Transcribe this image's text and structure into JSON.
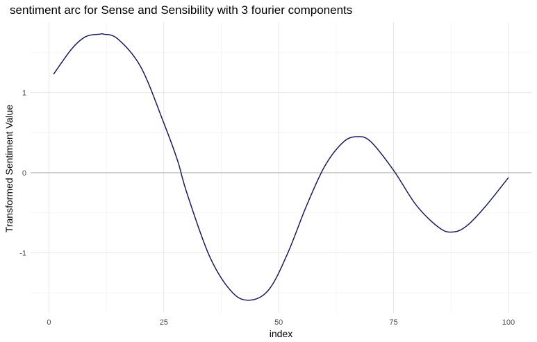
{
  "chart_data": {
    "type": "line",
    "title": "sentiment arc for Sense and Sensibility with 3 fourier components",
    "xlabel": "index",
    "ylabel": "Transformed Sentiment Value",
    "xlim": [
      -4,
      105
    ],
    "ylim": [
      -1.75,
      1.88
    ],
    "x_ticks": [
      0,
      25,
      50,
      75,
      100
    ],
    "x_tick_labels": [
      "0",
      "25",
      "50",
      "75",
      "100"
    ],
    "y_ticks": [
      -1,
      0,
      1
    ],
    "y_tick_labels": [
      "-1",
      "0",
      "1"
    ],
    "grid": true,
    "reference_line_y": 0,
    "line_color": "#1a1a5e",
    "series": [
      {
        "x": [
          1,
          5,
          8,
          11,
          12,
          15,
          20,
          25,
          28,
          30,
          35,
          40,
          44,
          48,
          52,
          56,
          60,
          64,
          67,
          70,
          75,
          80,
          85,
          88,
          91,
          95,
          100
        ],
        "y": [
          1.23,
          1.55,
          1.7,
          1.73,
          1.73,
          1.67,
          1.32,
          0.62,
          0.15,
          -0.25,
          -1.05,
          -1.5,
          -1.59,
          -1.45,
          -1.0,
          -0.42,
          0.08,
          0.38,
          0.45,
          0.39,
          0.03,
          -0.41,
          -0.69,
          -0.74,
          -0.66,
          -0.42,
          -0.06
        ]
      }
    ]
  }
}
